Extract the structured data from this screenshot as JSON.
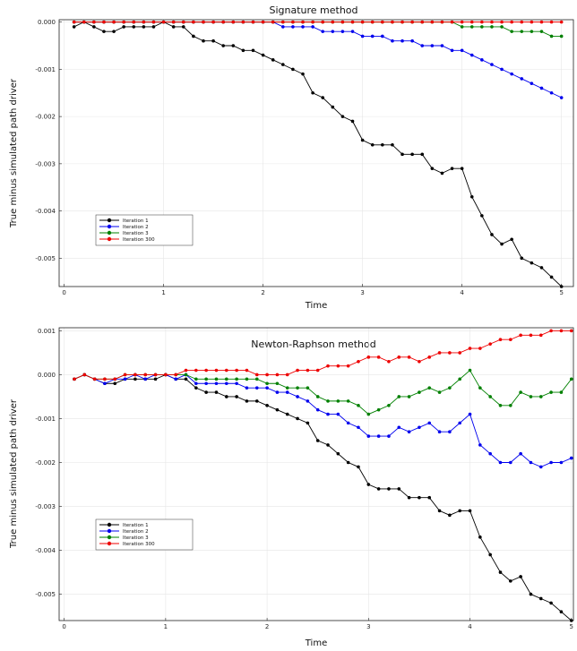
{
  "chart_data": [
    {
      "type": "line",
      "title": "Signature method",
      "xlabel": "Time",
      "ylabel": "True minus simulated path driver",
      "xlim": [
        -0.05,
        5.12
      ],
      "ylim": [
        -0.0056,
        5e-05
      ],
      "xticks": [
        0,
        1,
        2,
        3,
        4,
        5
      ],
      "xtick_labels": [
        "0",
        "1",
        "2",
        "3",
        "4",
        "5"
      ],
      "yticks": [
        0.0,
        -0.001,
        -0.002,
        -0.003,
        -0.004,
        -0.005
      ],
      "ytick_labels": [
        "0.000",
        "-0.001",
        "-0.002",
        "-0.003",
        "-0.004",
        "-0.005"
      ],
      "grid": true,
      "legend": "bottom-left",
      "x": [
        0.1,
        0.2,
        0.3,
        0.4,
        0.5,
        0.6,
        0.7,
        0.8,
        0.9,
        1.0,
        1.1,
        1.2,
        1.3,
        1.4,
        1.5,
        1.6,
        1.7,
        1.8,
        1.9,
        2.0,
        2.1,
        2.2,
        2.3,
        2.4,
        2.5,
        2.6,
        2.7,
        2.8,
        2.9,
        3.0,
        3.1,
        3.2,
        3.3,
        3.4,
        3.5,
        3.6,
        3.7,
        3.8,
        3.9,
        4.0,
        4.1,
        4.2,
        4.3,
        4.4,
        4.5,
        4.6,
        4.7,
        4.8,
        4.9,
        5.0
      ],
      "series": [
        {
          "name": "Iteration 1",
          "color": "#000000",
          "values": [
            -0.0001,
            0.0,
            -0.0001,
            -0.0002,
            -0.0002,
            -0.0001,
            -0.0001,
            -0.0001,
            -0.0001,
            0.0,
            -0.0001,
            -0.0001,
            -0.0003,
            -0.0004,
            -0.0004,
            -0.0005,
            -0.0005,
            -0.0006,
            -0.0006,
            -0.0007,
            -0.0008,
            -0.0009,
            -0.001,
            -0.0011,
            -0.0015,
            -0.0016,
            -0.0018,
            -0.002,
            -0.0021,
            -0.0025,
            -0.0026,
            -0.0026,
            -0.0026,
            -0.0028,
            -0.0028,
            -0.0028,
            -0.0031,
            -0.0032,
            -0.0031,
            -0.0031,
            -0.0037,
            -0.0041,
            -0.0045,
            -0.0047,
            -0.0046,
            -0.005,
            -0.0051,
            -0.0052,
            -0.0054,
            -0.0056
          ]
        },
        {
          "name": "Iteration 2",
          "color": "#0000ee",
          "values": [
            0.0,
            0.0,
            0.0,
            0.0,
            0.0,
            0.0,
            0.0,
            0.0,
            0.0,
            0.0,
            0.0,
            0.0,
            0.0,
            0.0,
            0.0,
            0.0,
            0.0,
            0.0,
            0.0,
            0.0,
            0.0,
            -0.0001,
            -0.0001,
            -0.0001,
            -0.0001,
            -0.0002,
            -0.0002,
            -0.0002,
            -0.0002,
            -0.0003,
            -0.0003,
            -0.0003,
            -0.0004,
            -0.0004,
            -0.0004,
            -0.0005,
            -0.0005,
            -0.0005,
            -0.0006,
            -0.0006,
            -0.0007,
            -0.0008,
            -0.0009,
            -0.001,
            -0.0011,
            -0.0012,
            -0.0013,
            -0.0014,
            -0.0015,
            -0.0016
          ]
        },
        {
          "name": "Iteration 3",
          "color": "#008000",
          "values": [
            0.0,
            0.0,
            0.0,
            0.0,
            0.0,
            0.0,
            0.0,
            0.0,
            0.0,
            0.0,
            0.0,
            0.0,
            0.0,
            0.0,
            0.0,
            0.0,
            0.0,
            0.0,
            0.0,
            0.0,
            0.0,
            0.0,
            0.0,
            0.0,
            0.0,
            0.0,
            0.0,
            0.0,
            0.0,
            0.0,
            0.0,
            0.0,
            0.0,
            0.0,
            0.0,
            0.0,
            0.0,
            0.0,
            0.0,
            -0.0001,
            -0.0001,
            -0.0001,
            -0.0001,
            -0.0001,
            -0.0002,
            -0.0002,
            -0.0002,
            -0.0002,
            -0.0003,
            -0.0003
          ]
        },
        {
          "name": "Iteration 300",
          "color": "#ee0000",
          "values": [
            0.0,
            0.0,
            0.0,
            0.0,
            0.0,
            0.0,
            0.0,
            0.0,
            0.0,
            0.0,
            0.0,
            0.0,
            0.0,
            0.0,
            0.0,
            0.0,
            0.0,
            0.0,
            0.0,
            0.0,
            0.0,
            0.0,
            0.0,
            0.0,
            0.0,
            0.0,
            0.0,
            0.0,
            0.0,
            0.0,
            0.0,
            0.0,
            0.0,
            0.0,
            0.0,
            0.0,
            0.0,
            0.0,
            0.0,
            0.0,
            0.0,
            0.0,
            0.0,
            0.0,
            0.0,
            0.0,
            0.0,
            0.0,
            0.0,
            0.0
          ]
        }
      ]
    },
    {
      "type": "line",
      "title": "Newton-Raphson method",
      "xlabel": "Time",
      "ylabel": "True minus simulated path driver",
      "xlim": [
        -0.05,
        5.02
      ],
      "ylim": [
        -0.0056,
        0.00107
      ],
      "xticks": [
        0,
        1,
        2,
        3,
        4,
        5
      ],
      "xtick_labels": [
        "0",
        "1",
        "2",
        "3",
        "4",
        "5"
      ],
      "yticks": [
        0.001,
        0.0,
        -0.001,
        -0.002,
        -0.003,
        -0.004,
        -0.005
      ],
      "ytick_labels": [
        "0.001",
        "0.000",
        "-0.001",
        "-0.002",
        "-0.003",
        "-0.004",
        "-0.005"
      ],
      "grid": true,
      "legend": "bottom-left",
      "x": [
        0.1,
        0.2,
        0.3,
        0.4,
        0.5,
        0.6,
        0.7,
        0.8,
        0.9,
        1.0,
        1.1,
        1.2,
        1.3,
        1.4,
        1.5,
        1.6,
        1.7,
        1.8,
        1.9,
        2.0,
        2.1,
        2.2,
        2.3,
        2.4,
        2.5,
        2.6,
        2.7,
        2.8,
        2.9,
        3.0,
        3.1,
        3.2,
        3.3,
        3.4,
        3.5,
        3.6,
        3.7,
        3.8,
        3.9,
        4.0,
        4.1,
        4.2,
        4.3,
        4.4,
        4.5,
        4.6,
        4.7,
        4.8,
        4.9,
        5.0
      ],
      "series": [
        {
          "name": "Iteration 1",
          "color": "#000000",
          "values": [
            -0.0001,
            0.0,
            -0.0001,
            -0.0002,
            -0.0002,
            -0.0001,
            -0.0001,
            -0.0001,
            -0.0001,
            0.0,
            -0.0001,
            -0.0001,
            -0.0003,
            -0.0004,
            -0.0004,
            -0.0005,
            -0.0005,
            -0.0006,
            -0.0006,
            -0.0007,
            -0.0008,
            -0.0009,
            -0.001,
            -0.0011,
            -0.0015,
            -0.0016,
            -0.0018,
            -0.002,
            -0.0021,
            -0.0025,
            -0.0026,
            -0.0026,
            -0.0026,
            -0.0028,
            -0.0028,
            -0.0028,
            -0.0031,
            -0.0032,
            -0.0031,
            -0.0031,
            -0.0037,
            -0.0041,
            -0.0045,
            -0.0047,
            -0.0046,
            -0.005,
            -0.0051,
            -0.0052,
            -0.0054,
            -0.0056
          ]
        },
        {
          "name": "Iteration 2",
          "color": "#0000ee",
          "values": [
            -0.0001,
            0.0,
            -0.0001,
            -0.0002,
            -0.0001,
            -0.0001,
            0.0,
            -0.0001,
            0.0,
            0.0,
            -0.0001,
            0.0,
            -0.0002,
            -0.0002,
            -0.0002,
            -0.0002,
            -0.0002,
            -0.0003,
            -0.0003,
            -0.0003,
            -0.0004,
            -0.0004,
            -0.0005,
            -0.0006,
            -0.0008,
            -0.0009,
            -0.0009,
            -0.0011,
            -0.0012,
            -0.0014,
            -0.0014,
            -0.0014,
            -0.0012,
            -0.0013,
            -0.0012,
            -0.0011,
            -0.0013,
            -0.0013,
            -0.0011,
            -0.0009,
            -0.0016,
            -0.0018,
            -0.002,
            -0.002,
            -0.0018,
            -0.002,
            -0.0021,
            -0.002,
            -0.002,
            -0.0019
          ]
        },
        {
          "name": "Iteration 3",
          "color": "#008000",
          "values": [
            -0.0001,
            0.0,
            -0.0001,
            -0.0001,
            -0.0001,
            0.0,
            0.0,
            0.0,
            0.0,
            0.0,
            0.0,
            0.0,
            -0.0001,
            -0.0001,
            -0.0001,
            -0.0001,
            -0.0001,
            -0.0001,
            -0.0001,
            -0.0002,
            -0.0002,
            -0.0003,
            -0.0003,
            -0.0003,
            -0.0005,
            -0.0006,
            -0.0006,
            -0.0006,
            -0.0007,
            -0.0009,
            -0.0008,
            -0.0007,
            -0.0005,
            -0.0005,
            -0.0004,
            -0.0003,
            -0.0004,
            -0.0003,
            -0.0001,
            0.0001,
            -0.0003,
            -0.0005,
            -0.0007,
            -0.0007,
            -0.0004,
            -0.0005,
            -0.0005,
            -0.0004,
            -0.0004,
            -0.0001
          ]
        },
        {
          "name": "Iteration 300",
          "color": "#ee0000",
          "values": [
            -0.0001,
            0.0,
            -0.0001,
            -0.0001,
            -0.0001,
            0.0,
            0.0,
            0.0,
            0.0,
            0.0,
            0.0,
            0.0001,
            0.0001,
            0.0001,
            0.0001,
            0.0001,
            0.0001,
            0.0001,
            0.0,
            0.0,
            0.0,
            0.0,
            0.0001,
            0.0001,
            0.0001,
            0.0002,
            0.0002,
            0.0002,
            0.0003,
            0.0004,
            0.0004,
            0.0003,
            0.0004,
            0.0004,
            0.0003,
            0.0004,
            0.0005,
            0.0005,
            0.0005,
            0.0006,
            0.0006,
            0.0007,
            0.0008,
            0.0008,
            0.0009,
            0.0009,
            0.0009,
            0.001,
            0.001,
            0.001
          ]
        }
      ]
    }
  ]
}
